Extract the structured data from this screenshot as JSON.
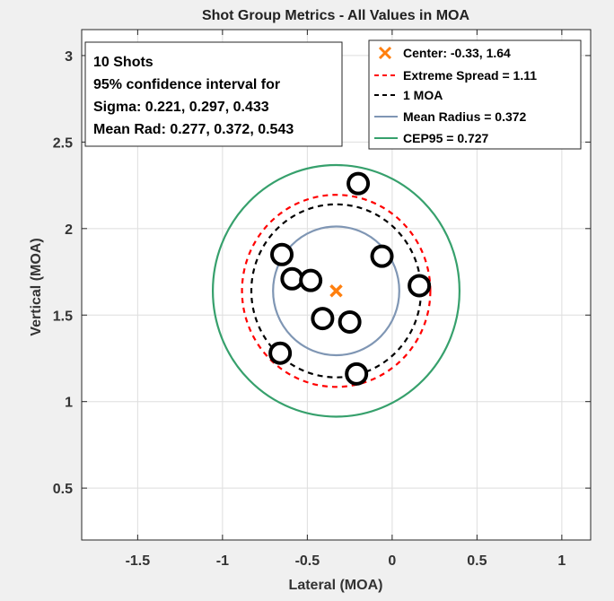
{
  "chart_data": {
    "type": "scatter",
    "title": "Shot Group Metrics - All Values in MOA",
    "xlabel": "Lateral (MOA)",
    "ylabel": "Vertical (MOA)",
    "xlim": [
      -1.83,
      1.17
    ],
    "ylim": [
      0.2,
      3.15
    ],
    "xticks": [
      -1.5,
      -1,
      -0.5,
      0,
      0.5,
      1
    ],
    "xtick_labels": [
      "-1.5",
      "-1",
      "-0.5",
      "0",
      "0.5",
      "1"
    ],
    "yticks": [
      0.5,
      1,
      1.5,
      2,
      2.5,
      3
    ],
    "ytick_labels": [
      "0.5",
      "1",
      "1.5",
      "2",
      "2.5",
      "3"
    ],
    "grid": true,
    "shots": {
      "name": "Shots",
      "points": [
        {
          "x": -0.2,
          "y": 2.26
        },
        {
          "x": -0.06,
          "y": 1.84
        },
        {
          "x": 0.16,
          "y": 1.67
        },
        {
          "x": -0.65,
          "y": 1.85
        },
        {
          "x": -0.59,
          "y": 1.71
        },
        {
          "x": -0.48,
          "y": 1.7
        },
        {
          "x": -0.41,
          "y": 1.48
        },
        {
          "x": -0.25,
          "y": 1.46
        },
        {
          "x": -0.66,
          "y": 1.28
        },
        {
          "x": -0.21,
          "y": 1.16
        }
      ],
      "color": "#000000"
    },
    "center": {
      "x": -0.33,
      "y": 1.64,
      "color": "#ff7f0e"
    },
    "circles": [
      {
        "name": "Extreme Spread",
        "radius": 0.555,
        "color": "#ff0000",
        "style": "dashed"
      },
      {
        "name": "1 MOA",
        "radius": 0.5,
        "color": "#000000",
        "style": "dashed"
      },
      {
        "name": "Mean Radius",
        "radius": 0.372,
        "color": "#7f96b4",
        "style": "solid"
      },
      {
        "name": "CEP95",
        "radius": 0.727,
        "color": "#36a06c",
        "style": "solid"
      }
    ],
    "info_box": {
      "lines": [
        "10 Shots",
        "95% confidence interval for",
        "Sigma: 0.221, 0.297, 0.433",
        "Mean Rad: 0.277, 0.372, 0.543"
      ]
    },
    "legend": {
      "placement": "top-right",
      "entries": [
        {
          "label": "Center: -0.33, 1.64",
          "marker": "x",
          "color": "#ff7f0e"
        },
        {
          "label": "Extreme Spread = 1.11",
          "marker": "dashed",
          "color": "#ff0000"
        },
        {
          "label": "1 MOA",
          "marker": "dashed",
          "color": "#000000"
        },
        {
          "label": "Mean Radius = 0.372",
          "marker": "solid",
          "color": "#7f96b4"
        },
        {
          "label": "CEP95 = 0.727",
          "marker": "solid",
          "color": "#36a06c"
        }
      ]
    }
  }
}
